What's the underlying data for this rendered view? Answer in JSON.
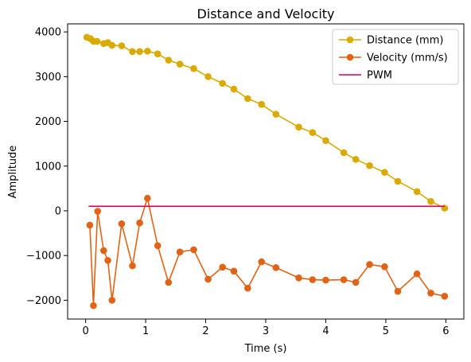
{
  "chart_data": {
    "type": "line",
    "title": "Distance and Velocity",
    "xlabel": "Time (s)",
    "ylabel": "Amplitude",
    "xlim": [
      -0.3,
      6.3
    ],
    "ylim": [
      -2420,
      4180
    ],
    "xticks": [
      0,
      1,
      2,
      3,
      4,
      5,
      6
    ],
    "yticks": [
      -2000,
      -1000,
      0,
      1000,
      2000,
      3000,
      4000
    ],
    "xtick_labels": [
      "0",
      "1",
      "2",
      "3",
      "4",
      "5",
      "6"
    ],
    "ytick_labels": [
      "−2000",
      "−1000",
      "0",
      "1000",
      "2000",
      "3000",
      "4000"
    ],
    "grid": false,
    "legend_position": "top-right",
    "series": [
      {
        "name": "Distance (mm)",
        "color": "#DAAA00",
        "marker": "circle",
        "x": [
          0.02,
          0.08,
          0.13,
          0.19,
          0.3,
          0.37,
          0.44,
          0.6,
          0.78,
          0.9,
          1.03,
          1.2,
          1.38,
          1.57,
          1.8,
          2.04,
          2.28,
          2.47,
          2.7,
          2.93,
          3.17,
          3.55,
          3.78,
          4.0,
          4.3,
          4.5,
          4.73,
          4.98,
          5.2,
          5.52,
          5.75,
          5.98
        ],
        "y": [
          3880,
          3850,
          3790,
          3790,
          3740,
          3760,
          3700,
          3690,
          3560,
          3560,
          3570,
          3510,
          3370,
          3280,
          3180,
          3000,
          2850,
          2720,
          2510,
          2380,
          2160,
          1870,
          1750,
          1570,
          1300,
          1150,
          1010,
          860,
          660,
          430,
          210,
          60
        ]
      },
      {
        "name": "Velocity (mm/s)",
        "color": "#E16416",
        "marker": "circle",
        "x": [
          0.07,
          0.13,
          0.2,
          0.3,
          0.37,
          0.44,
          0.6,
          0.78,
          0.9,
          1.03,
          1.2,
          1.38,
          1.57,
          1.8,
          2.04,
          2.28,
          2.47,
          2.7,
          2.93,
          3.17,
          3.55,
          3.78,
          4.0,
          4.3,
          4.5,
          4.73,
          4.98,
          5.2,
          5.52,
          5.75,
          5.98
        ],
        "y": [
          -320,
          -2120,
          -10,
          -890,
          -1110,
          -2000,
          -290,
          -1230,
          -270,
          280,
          -780,
          -1600,
          -920,
          -870,
          -1530,
          -1260,
          -1350,
          -1730,
          -1140,
          -1270,
          -1500,
          -1540,
          -1550,
          -1540,
          -1600,
          -1200,
          -1250,
          -1800,
          -1410,
          -1840,
          -1910
        ]
      },
      {
        "name": "PWM",
        "color": "#D1005A",
        "marker": "none",
        "x": [
          0.05,
          5.98
        ],
        "y": [
          100,
          100
        ]
      }
    ]
  }
}
